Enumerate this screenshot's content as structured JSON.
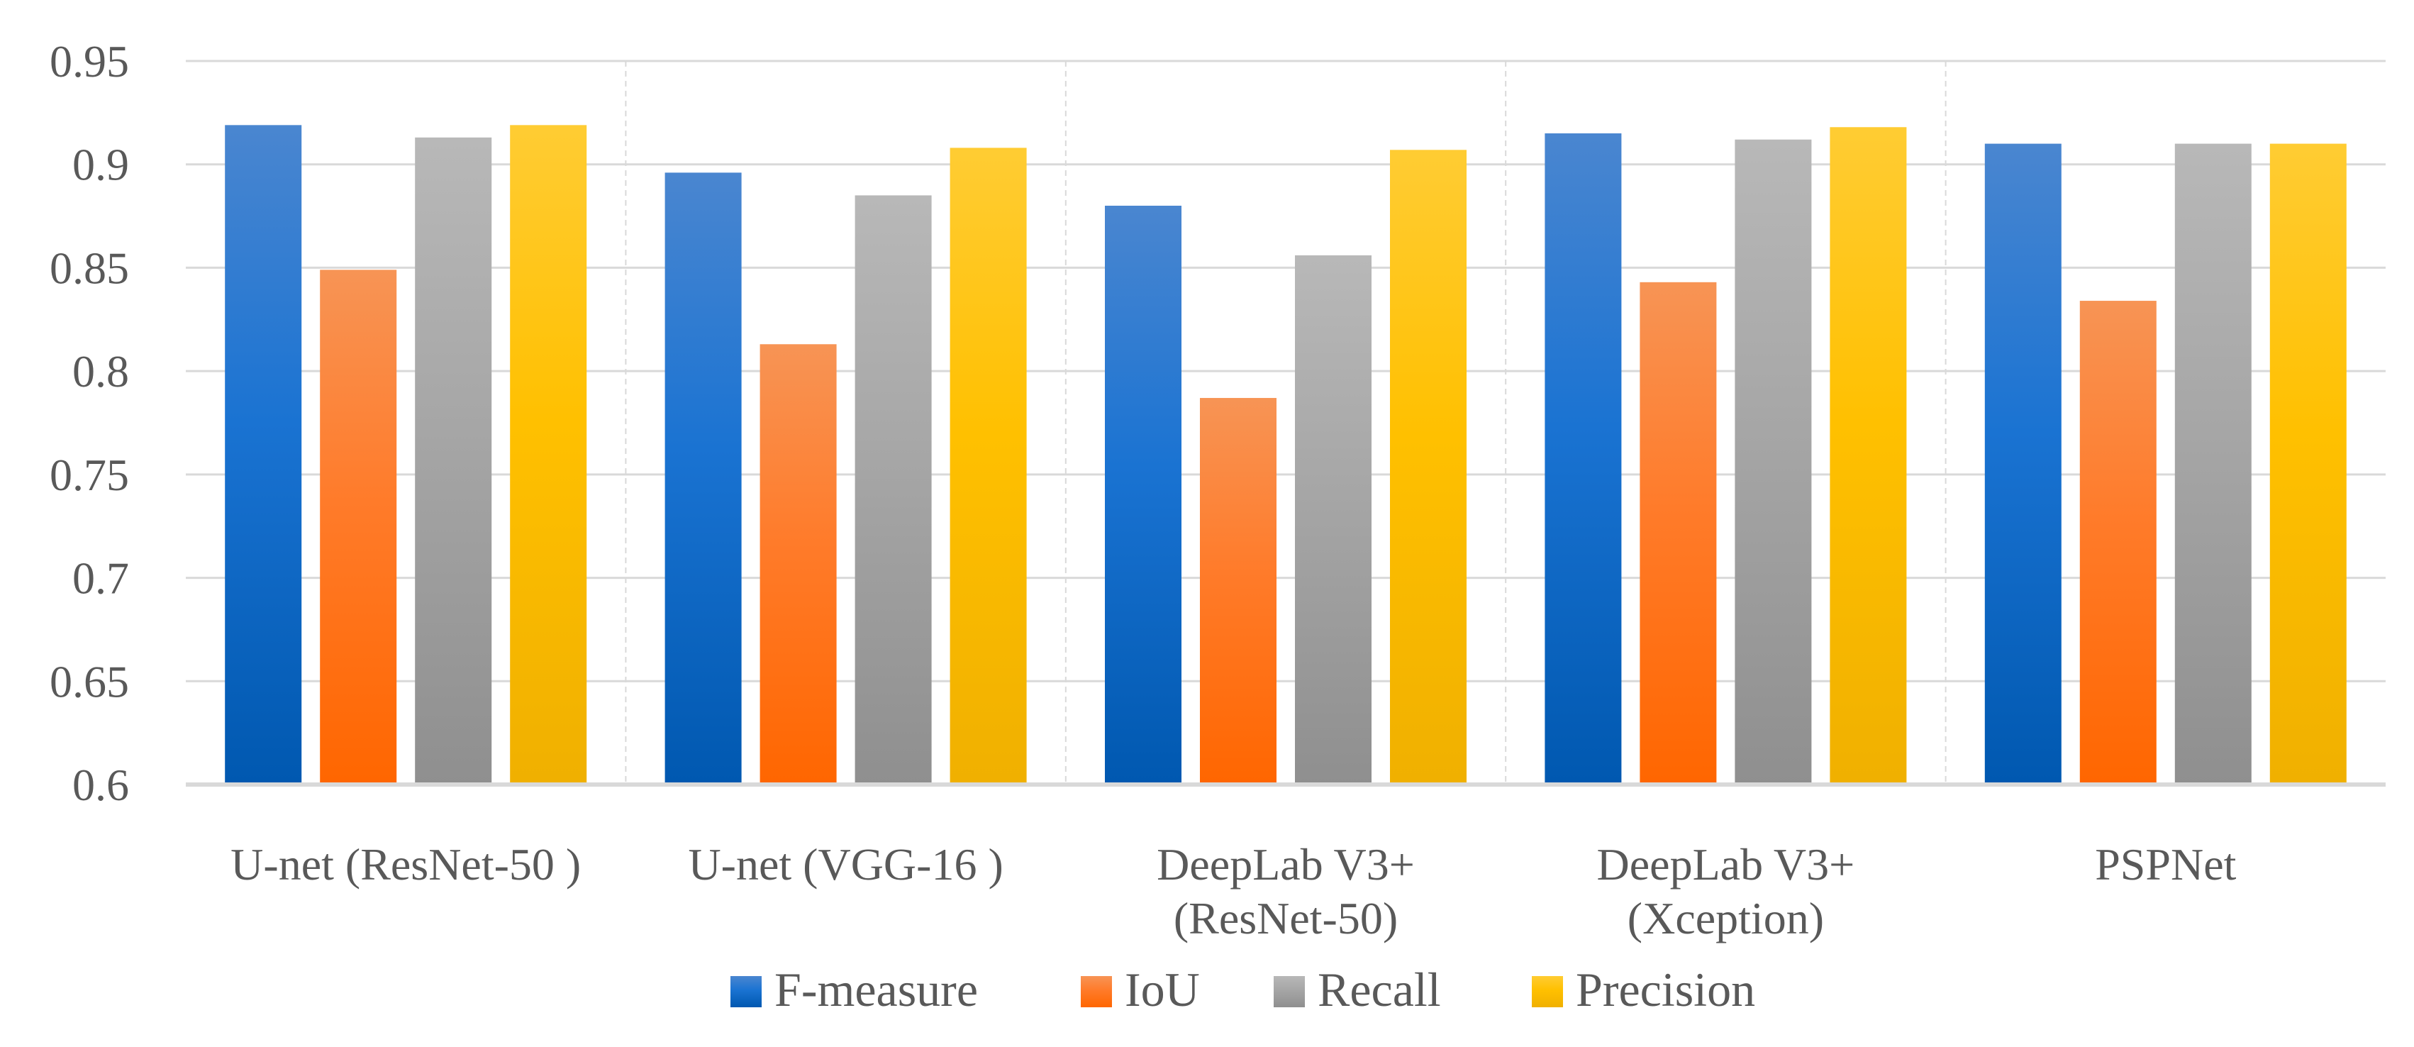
{
  "chart_data": {
    "type": "bar",
    "title": "",
    "xlabel": "",
    "ylabel": "",
    "ylim": [
      0.6,
      0.95
    ],
    "yticks": [
      "0.6",
      "0.65",
      "0.7",
      "0.75",
      "0.8",
      "0.85",
      "0.9",
      "0.95"
    ],
    "ytick_values": [
      0.6,
      0.65,
      0.7,
      0.75,
      0.8,
      0.85,
      0.9,
      0.95
    ],
    "grid": true,
    "legend_position": "bottom",
    "categories": [
      [
        "U-net (ResNet-50 )"
      ],
      [
        "U-net (VGG-16 )"
      ],
      [
        "DeepLab V3+",
        "(ResNet-50)"
      ],
      [
        "DeepLab V3+",
        "(Xception)"
      ],
      [
        "PSPNet"
      ]
    ],
    "series": [
      {
        "name": "F-measure",
        "color_top": "#4a86d0",
        "color_mid": "#1a73d2",
        "color_bottom": "#0058b0",
        "values": [
          0.919,
          0.896,
          0.88,
          0.915,
          0.91
        ]
      },
      {
        "name": "IoU",
        "color_top": "#f79455",
        "color_mid": "#ff7b2a",
        "color_bottom": "#ff6600",
        "values": [
          0.849,
          0.813,
          0.787,
          0.843,
          0.834
        ]
      },
      {
        "name": "Recall",
        "color_top": "#b8b8b8",
        "color_mid": "#a6a6a6",
        "color_bottom": "#8f8f8f",
        "values": [
          0.913,
          0.885,
          0.856,
          0.912,
          0.91
        ]
      },
      {
        "name": "Precision",
        "color_top": "#ffcc33",
        "color_mid": "#ffc000",
        "color_bottom": "#f0b000",
        "values": [
          0.919,
          0.908,
          0.907,
          0.918,
          0.91
        ]
      }
    ]
  }
}
